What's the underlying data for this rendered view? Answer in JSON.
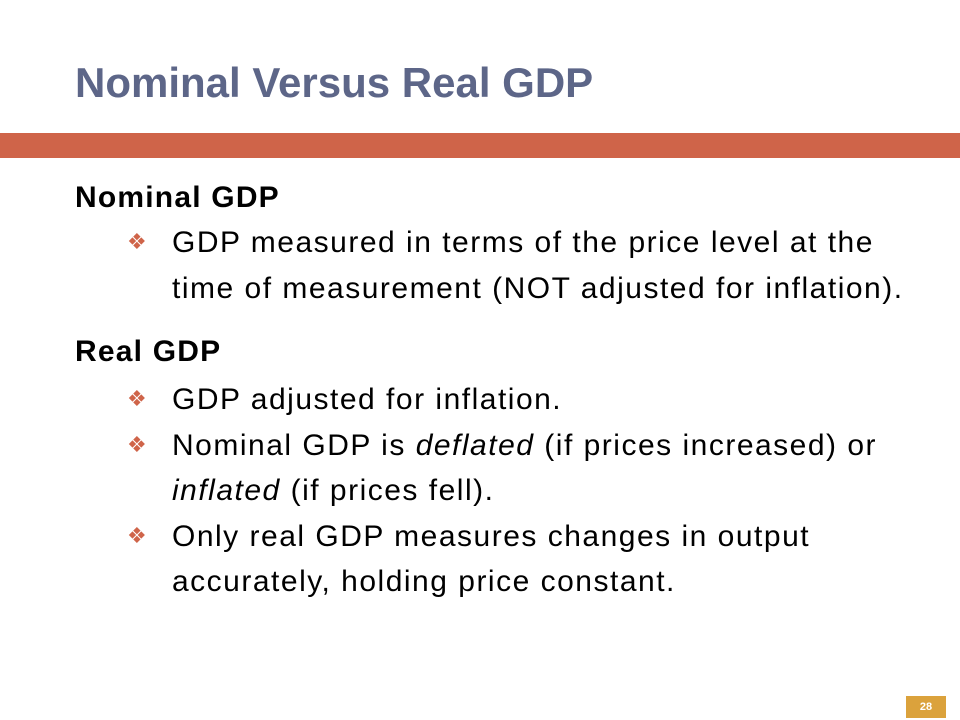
{
  "slide": {
    "title": "Nominal Versus Real GDP",
    "page_number": "28",
    "bullet_icon": "diamond-four-bullet-icon",
    "colors": {
      "title": "#5d6688",
      "accent_bar": "#cf6449",
      "bullet": "#cf6449",
      "page_badge": "#dba23c"
    },
    "sections": [
      {
        "heading": "Nominal GDP",
        "bullets": [
          {
            "line1": "GDP measured in terms of the price level at the",
            "line2": "time of measurement (NOT adjusted for inflation)."
          }
        ]
      },
      {
        "heading": "Real GDP",
        "bullets": [
          {
            "line1": "GDP adjusted for inflation."
          },
          {
            "line1_a": "Nominal GDP is ",
            "line1_em": "deflated",
            "line1_b": " (if prices increased) or",
            "line2_em": "inflated",
            "line2_b": " (if prices fell)."
          },
          {
            "line1": "Only real GDP measures changes in output",
            "line2": "accurately, holding price constant."
          }
        ]
      }
    ]
  }
}
